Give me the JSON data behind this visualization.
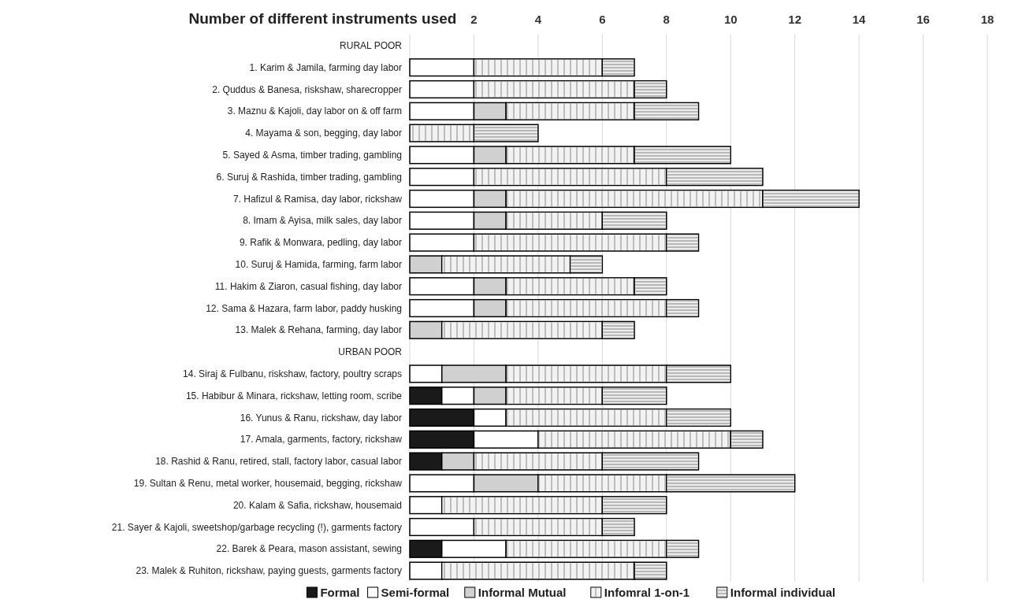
{
  "chart_data": {
    "type": "bar",
    "orientation": "horizontal",
    "stacked": true,
    "xlabel": "Number of different instruments used",
    "categories": [
      "RURAL POOR",
      "1. Karim & Jamila, farming day labor",
      "2. Quddus & Banesa, riskshaw, sharecropper",
      "3. Maznu & Kajoli, day labor on & off farm",
      "4. Mayama & son, begging, day labor",
      "5. Sayed & Asma, timber trading, gambling",
      "6. Suruj & Rashida, timber trading, gambling",
      "7. Hafizul & Ramisa, day labor, rickshaw",
      "8. Imam & Ayisa, milk sales, day labor",
      "9. Rafik & Monwara, pedling, day labor",
      "10. Suruj & Hamida, farming, farm labor",
      "11. Hakim & Ziaron, casual fishing, day labor",
      "12. Sama & Hazara, farm labor, paddy husking",
      "13. Malek & Rehana, farming, day labor",
      "URBAN POOR",
      "14. Siraj & Fulbanu, riskshaw, factory, poultry scraps",
      "15. Habibur & Minara, rickshaw, letting room, scribe",
      "16. Yunus & Ranu, rickshaw, day labor",
      "17. Amala, garments, factory, rickshaw",
      "18. Rashid & Ranu, retired, stall, factory labor, casual labor",
      "19. Sultan & Renu, metal worker, housemaid, begging, rickshaw",
      "20. Kalam & Safia, rickshaw, housemaid",
      "21. Sayer & Kajoli, sweetshop/garbage recycling (!), garments factory",
      "22. Barek & Peara, mason assistant, sewing",
      "23. Malek & Ruhiton, rickshaw, paying guests, garments factory"
    ],
    "series": [
      {
        "name": "Formal",
        "color": "#1a1a1a",
        "values": [
          null,
          0,
          0,
          0,
          0,
          0,
          0,
          0,
          0,
          0,
          0,
          0,
          0,
          0,
          null,
          0,
          1,
          2,
          2,
          1,
          0,
          0,
          0,
          1,
          0
        ]
      },
      {
        "name": "Semi-formal",
        "color": "#ffffff",
        "values": [
          null,
          2,
          2,
          2,
          0,
          2,
          2,
          2,
          2,
          2,
          0,
          2,
          2,
          0,
          null,
          1,
          1,
          1,
          2,
          0,
          2,
          1,
          2,
          2,
          1
        ]
      },
      {
        "name": "Informal Mutual",
        "color": "#d0d0d0",
        "values": [
          null,
          0,
          0,
          1,
          0,
          1,
          0,
          1,
          1,
          0,
          1,
          1,
          1,
          1,
          null,
          2,
          1,
          0,
          0,
          1,
          2,
          0,
          0,
          0,
          0
        ]
      },
      {
        "name": "Infomral 1-on-1",
        "color": "#f2f2f2",
        "values": [
          null,
          4,
          5,
          4,
          2,
          4,
          6,
          8,
          3,
          6,
          4,
          4,
          5,
          5,
          null,
          5,
          3,
          5,
          6,
          4,
          4,
          5,
          4,
          5,
          6
        ]
      },
      {
        "name": "Informal individual",
        "color": "#ececec",
        "values": [
          null,
          1,
          1,
          2,
          2,
          3,
          3,
          3,
          2,
          1,
          1,
          1,
          1,
          1,
          null,
          2,
          2,
          2,
          1,
          3,
          4,
          2,
          1,
          1,
          1
        ]
      }
    ],
    "xlim": [
      0,
      18
    ],
    "xticks": [
      2,
      4,
      6,
      8,
      10,
      12,
      14,
      16,
      18
    ],
    "grid": "x",
    "legend": "bottom"
  }
}
